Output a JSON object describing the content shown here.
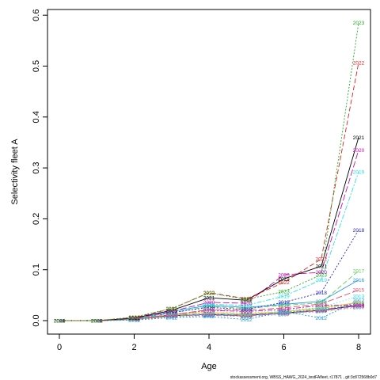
{
  "chart_data": {
    "type": "line",
    "xlabel": "Age",
    "ylabel": "Selectivity fleet A",
    "xlim": [
      -0.3,
      8.3
    ],
    "ylim": [
      -0.025,
      0.61
    ],
    "x": [
      0,
      1,
      2,
      3,
      4,
      5,
      6,
      7,
      8
    ],
    "x_ticks": [
      0,
      2,
      4,
      6,
      8
    ],
    "y_ticks": [
      0.0,
      0.1,
      0.2,
      0.3,
      0.4,
      0.5,
      0.6
    ],
    "y_tick_labels": [
      "0.0",
      "0.1",
      "0.2",
      "0.3",
      "0.4",
      "0.5",
      "0.6"
    ],
    "grid": false,
    "series": [
      {
        "name": "2004",
        "color": "#000000",
        "dash": "",
        "values": [
          0,
          0,
          0.003,
          0.01,
          0.012,
          0.01,
          0.015,
          0.02,
          0.03
        ]
      },
      {
        "name": "2005",
        "color": "#DF536B",
        "dash": "6,3",
        "values": [
          0,
          0,
          0.002,
          0.009,
          0.011,
          0.009,
          0.014,
          0.019,
          0.028
        ]
      },
      {
        "name": "2006",
        "color": "#61D04F",
        "dash": "2,2",
        "values": [
          0,
          0,
          0.002,
          0.008,
          0.013,
          0.011,
          0.016,
          0.022,
          0.032
        ]
      },
      {
        "name": "2007",
        "color": "#2297E6",
        "dash": "1,3",
        "values": [
          0,
          0,
          0.001,
          0.007,
          0.01,
          0.008,
          0.012,
          0.018,
          0.026
        ]
      },
      {
        "name": "2008",
        "color": "#28E2E5",
        "dash": "6,2,2,2",
        "values": [
          0,
          0,
          0.002,
          0.011,
          0.014,
          0.012,
          0.017,
          0.024,
          0.035
        ]
      },
      {
        "name": "2009",
        "color": "#CD0BBC",
        "dash": "8,3",
        "values": [
          0,
          0,
          0.002,
          0.01,
          0.012,
          0.011,
          0.015,
          0.021,
          0.031
        ]
      },
      {
        "name": "2010",
        "color": "#F5C710",
        "dash": "",
        "values": [
          0,
          0,
          0.003,
          0.012,
          0.016,
          0.013,
          0.018,
          0.025,
          0.036
        ]
      },
      {
        "name": "2011",
        "color": "#9E9E9E",
        "dash": "6,3",
        "values": [
          0,
          0,
          0.002,
          0.009,
          0.013,
          0.01,
          0.014,
          0.02,
          0.029
        ]
      },
      {
        "name": "2012",
        "color": "#2297E6",
        "dash": "2,2",
        "values": [
          0,
          0,
          0.001,
          0.006,
          0.008,
          0.002,
          0.018,
          0.005,
          0.04
        ]
      },
      {
        "name": "2013",
        "color": "#28E2E5",
        "dash": "1,3",
        "values": [
          0,
          0,
          0.002,
          0.013,
          0.018,
          0.015,
          0.02,
          0.026,
          0.048
        ]
      },
      {
        "name": "2014",
        "color": "#CD0BBC",
        "dash": "6,2,2,2",
        "values": [
          0,
          0,
          0.002,
          0.012,
          0.02,
          0.018,
          0.022,
          0.03,
          0.03
        ]
      },
      {
        "name": "2015",
        "color": "#DF536B",
        "dash": "8,3",
        "values": [
          0,
          0,
          0.002,
          0.011,
          0.022,
          0.02,
          0.025,
          0.033,
          0.06
        ]
      },
      {
        "name": "2016",
        "color": "#2297E6",
        "dash": "",
        "values": [
          0,
          0,
          0.003,
          0.018,
          0.03,
          0.026,
          0.032,
          0.038,
          0.08
        ]
      },
      {
        "name": "2017",
        "color": "#61D04F",
        "dash": "6,3",
        "values": [
          0,
          0,
          0.002,
          0.015,
          0.028,
          0.024,
          0.03,
          0.035,
          0.098
        ]
      },
      {
        "name": "2018",
        "color": "#2222CC",
        "dash": "2,2",
        "values": [
          0,
          0,
          0.003,
          0.016,
          0.026,
          0.022,
          0.036,
          0.055,
          0.178
        ]
      },
      {
        "name": "2019",
        "color": "#28E2E5",
        "dash": "6,2,2,2",
        "values": [
          0,
          0,
          0.003,
          0.017,
          0.032,
          0.03,
          0.048,
          0.08,
          0.292
        ]
      },
      {
        "name": "2020",
        "color": "#CD0BBC",
        "dash": "8,3",
        "values": [
          0,
          0,
          0.004,
          0.018,
          0.036,
          0.034,
          0.09,
          0.095,
          0.335
        ]
      },
      {
        "name": "2021",
        "color": "#000000",
        "dash": "",
        "values": [
          0,
          0,
          0.005,
          0.02,
          0.045,
          0.04,
          0.082,
          0.107,
          0.36
        ]
      },
      {
        "name": "2022",
        "color": "#DF2020",
        "dash": "6,3",
        "values": [
          0,
          0,
          0.006,
          0.023,
          0.055,
          0.043,
          0.075,
          0.121,
          0.507
        ]
      },
      {
        "name": "2023",
        "color": "#22AA22",
        "dash": "2,2",
        "values": [
          0,
          0,
          0.007,
          0.024,
          0.054,
          0.042,
          0.057,
          0.09,
          0.585
        ]
      }
    ]
  },
  "footer": "stockassessment.org, WBSS_HAWG_2024_testFAfleet, r17871 , git:3c872568b0d7"
}
